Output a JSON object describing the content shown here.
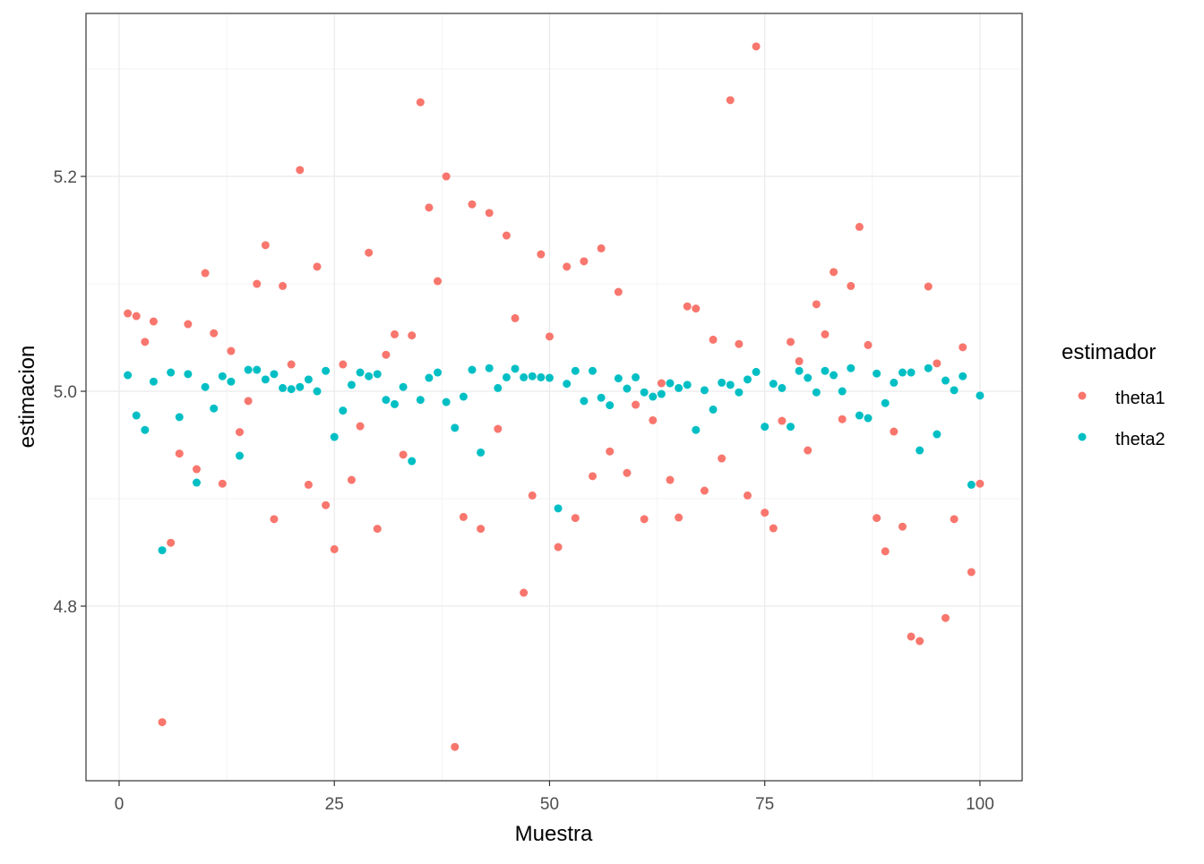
{
  "chart_data": {
    "type": "scatter",
    "title": "",
    "xlabel": "Muestra",
    "ylabel": "estimacion",
    "xlim": [
      -3.85,
      104.9
    ],
    "ylim": [
      4.6375,
      5.3517
    ],
    "x_ticks": [
      0,
      25,
      50,
      75,
      100
    ],
    "x_tick_labels": [
      "0",
      "25",
      "50",
      "75",
      "100"
    ],
    "y_ticks": [
      4.8,
      5.0,
      5.2
    ],
    "y_tick_labels": [
      "4.8",
      "5.0",
      "5.2"
    ],
    "grid": true,
    "legend": {
      "title": "estimador",
      "placement": "right"
    },
    "series": [
      {
        "name": "theta1",
        "color": "#F8766D",
        "x": [
          1,
          2,
          3,
          4,
          5,
          6,
          7,
          8,
          9,
          10,
          11,
          12,
          13,
          14,
          15,
          16,
          17,
          18,
          19,
          20,
          21,
          22,
          23,
          24,
          25,
          26,
          27,
          28,
          29,
          30,
          31,
          32,
          33,
          34,
          35,
          36,
          37,
          38,
          39,
          40,
          41,
          42,
          43,
          44,
          45,
          46,
          47,
          48,
          49,
          50,
          51,
          52,
          53,
          54,
          55,
          56,
          57,
          58,
          59,
          60,
          61,
          62,
          63,
          64,
          65,
          66,
          67,
          68,
          69,
          70,
          71,
          72,
          73,
          74,
          75,
          76,
          77,
          78,
          79,
          80,
          81,
          82,
          83,
          84,
          85,
          86,
          87,
          88,
          89,
          90,
          91,
          92,
          93,
          94,
          95,
          96,
          97,
          98,
          99,
          100
        ],
        "y": [
          5.0725,
          5.07,
          5.046,
          5.065,
          4.692,
          4.859,
          4.942,
          5.0625,
          4.9275,
          5.11,
          5.054,
          4.914,
          5.0375,
          4.962,
          4.991,
          5.1,
          5.136,
          4.881,
          5.098,
          5.025,
          5.206,
          4.913,
          5.116,
          4.894,
          4.853,
          5.025,
          4.9175,
          4.9675,
          5.129,
          4.872,
          5.034,
          5.053,
          4.941,
          5.052,
          5.269,
          5.171,
          5.1025,
          5.2,
          4.669,
          4.883,
          5.174,
          4.872,
          5.166,
          4.965,
          5.145,
          5.068,
          4.8125,
          4.903,
          5.1275,
          5.051,
          4.855,
          5.116,
          4.882,
          5.121,
          4.921,
          5.133,
          4.944,
          5.0925,
          4.924,
          4.9875,
          4.881,
          4.973,
          5.0075,
          4.9175,
          4.8825,
          5.079,
          5.077,
          4.9075,
          5.048,
          4.9375,
          5.271,
          5.044,
          4.903,
          5.321,
          4.887,
          4.8725,
          4.9725,
          5.046,
          5.028,
          4.945,
          5.081,
          5.053,
          5.111,
          4.974,
          5.098,
          5.153,
          5.043,
          4.882,
          4.851,
          4.9625,
          4.874,
          4.7717,
          4.7675,
          5.0975,
          5.026,
          4.789,
          4.881,
          5.041,
          4.8317,
          4.914
        ]
      },
      {
        "name": "theta2",
        "color": "#00BFC4",
        "x": [
          1,
          2,
          3,
          4,
          5,
          6,
          7,
          8,
          9,
          10,
          11,
          12,
          13,
          14,
          15,
          16,
          17,
          18,
          19,
          20,
          21,
          22,
          23,
          24,
          25,
          26,
          27,
          28,
          29,
          30,
          31,
          32,
          33,
          34,
          35,
          36,
          37,
          38,
          39,
          40,
          41,
          42,
          43,
          44,
          45,
          46,
          47,
          48,
          49,
          50,
          51,
          52,
          53,
          54,
          55,
          56,
          57,
          58,
          59,
          60,
          61,
          62,
          63,
          64,
          65,
          66,
          67,
          68,
          69,
          70,
          71,
          72,
          73,
          74,
          75,
          76,
          77,
          78,
          79,
          80,
          81,
          82,
          83,
          84,
          85,
          86,
          87,
          88,
          89,
          90,
          91,
          92,
          93,
          94,
          95,
          96,
          97,
          98,
          99,
          100
        ],
        "y": [
          5.015,
          4.9775,
          4.964,
          5.009,
          4.852,
          5.0175,
          4.976,
          5.016,
          4.915,
          5.004,
          4.984,
          5.014,
          5.009,
          4.94,
          5.02,
          5.02,
          5.011,
          5.016,
          5.003,
          5.002,
          5.004,
          5.011,
          5.0,
          5.019,
          4.9575,
          4.982,
          5.006,
          5.0175,
          5.014,
          5.016,
          4.992,
          4.988,
          5.004,
          4.935,
          4.992,
          5.0125,
          5.0175,
          4.99,
          4.966,
          4.995,
          5.02,
          4.943,
          5.0215,
          5.003,
          5.013,
          5.021,
          5.013,
          5.014,
          5.013,
          5.0125,
          4.891,
          5.007,
          5.019,
          4.991,
          5.019,
          4.994,
          4.987,
          5.012,
          5.0025,
          5.013,
          4.999,
          4.995,
          4.9975,
          5.0075,
          5.003,
          5.006,
          4.964,
          5.001,
          4.983,
          5.008,
          5.006,
          4.999,
          5.011,
          5.018,
          4.967,
          5.007,
          5.003,
          4.967,
          5.019,
          5.0125,
          4.999,
          5.019,
          5.015,
          5.0,
          5.0215,
          4.9775,
          4.975,
          5.0165,
          4.989,
          5.008,
          5.0175,
          5.0175,
          4.945,
          5.0215,
          4.96,
          5.01,
          5.001,
          5.014,
          4.913,
          4.996
        ]
      }
    ]
  }
}
